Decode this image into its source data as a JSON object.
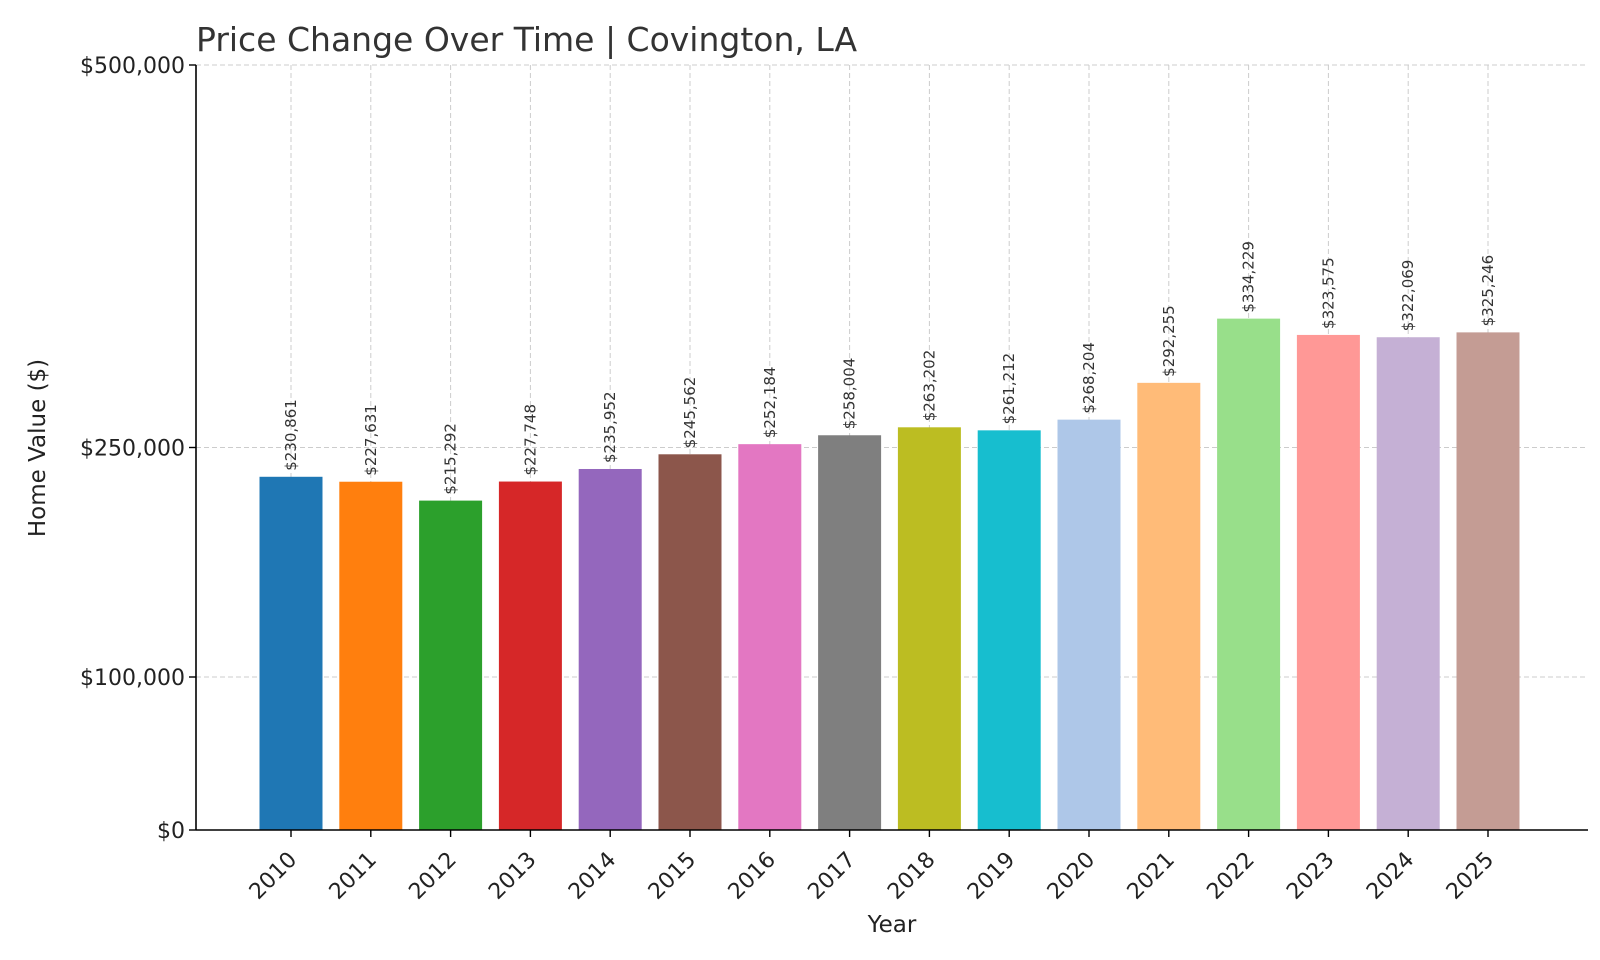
{
  "chart_data": {
    "type": "bar",
    "title": "Price Change Over Time | Covington, LA",
    "xlabel": "Year",
    "ylabel": "Home Value ($)",
    "categories": [
      "2010",
      "2011",
      "2012",
      "2013",
      "2014",
      "2015",
      "2016",
      "2017",
      "2018",
      "2019",
      "2020",
      "2021",
      "2022",
      "2023",
      "2024",
      "2025"
    ],
    "values": [
      230861,
      227631,
      215292,
      227748,
      235952,
      245562,
      252184,
      258004,
      263202,
      261212,
      268204,
      292255,
      334229,
      323575,
      322069,
      325246
    ],
    "value_labels": [
      "$230,861",
      "$227,631",
      "$215,292",
      "$227,748",
      "$235,952",
      "$245,562",
      "$252,184",
      "$258,004",
      "$263,202",
      "$261,212",
      "$268,204",
      "$292,255",
      "$334,229",
      "$323,575",
      "$322,069",
      "$325,246"
    ],
    "colors": [
      "#1f77b4",
      "#ff7f0e",
      "#2ca02c",
      "#d62728",
      "#9467bd",
      "#8c564b",
      "#e377c2",
      "#7f7f7f",
      "#bcbd22",
      "#17becf",
      "#aec7e8",
      "#ffbb78",
      "#98df8a",
      "#ff9896",
      "#c5b0d5",
      "#c49c94"
    ],
    "yticks": [
      0,
      100000,
      250000,
      500000
    ],
    "ytick_labels": [
      "$0",
      "$100,000",
      "$250,000",
      "$500,000"
    ],
    "ylim": [
      0,
      500000
    ],
    "grid": true,
    "legend": "none"
  }
}
